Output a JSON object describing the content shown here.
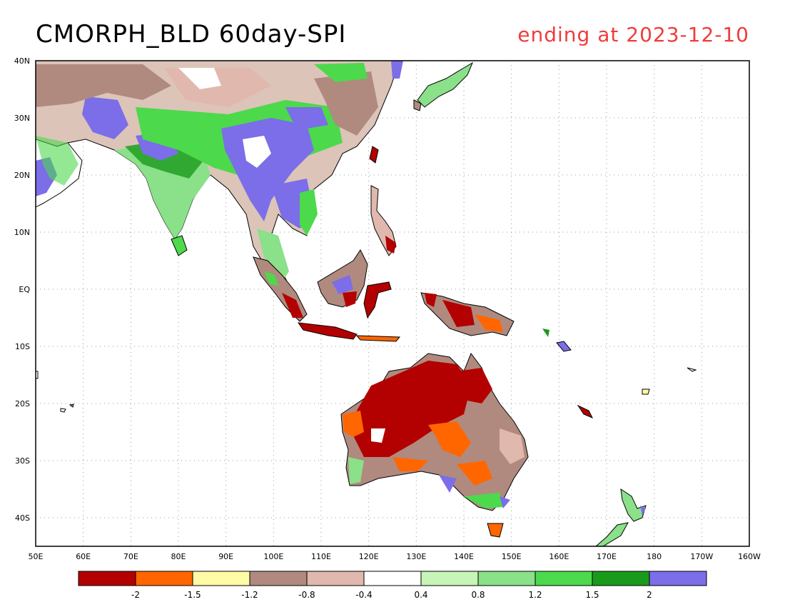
{
  "title": "CMORPH_BLD 60day-SPI",
  "subtitle": "ending at 2023-12-10",
  "colors": {
    "subtitle": "#f03c3c",
    "bins": [
      "#b30000",
      "#ff6600",
      "#fffaa5",
      "#b08a7e",
      "#e0b8ad",
      "#ffffff",
      "#c6f5b7",
      "#8be08a",
      "#4cd94c",
      "#1a9a1a",
      "#7b6ee8"
    ]
  },
  "map": {
    "lon_range": [
      50,
      200
    ],
    "lat_range": [
      -45,
      40
    ],
    "lat_ticks": [
      {
        "lat": 40,
        "label": "40N"
      },
      {
        "lat": 30,
        "label": "30N"
      },
      {
        "lat": 20,
        "label": "20N"
      },
      {
        "lat": 10,
        "label": "10N"
      },
      {
        "lat": 0,
        "label": "EQ"
      },
      {
        "lat": -10,
        "label": "10S"
      },
      {
        "lat": -20,
        "label": "20S"
      },
      {
        "lat": -30,
        "label": "30S"
      },
      {
        "lat": -40,
        "label": "40S"
      }
    ],
    "lon_ticks": [
      {
        "lon": 50,
        "label": "50E"
      },
      {
        "lon": 60,
        "label": "60E"
      },
      {
        "lon": 70,
        "label": "70E"
      },
      {
        "lon": 80,
        "label": "80E"
      },
      {
        "lon": 90,
        "label": "90E"
      },
      {
        "lon": 100,
        "label": "100E"
      },
      {
        "lon": 110,
        "label": "110E"
      },
      {
        "lon": 120,
        "label": "120E"
      },
      {
        "lon": 130,
        "label": "130E"
      },
      {
        "lon": 140,
        "label": "140E"
      },
      {
        "lon": 150,
        "label": "150E"
      },
      {
        "lon": 160,
        "label": "160E"
      },
      {
        "lon": 170,
        "label": "170E"
      },
      {
        "lon": 180,
        "label": "180"
      },
      {
        "lon": 190,
        "label": "170W"
      },
      {
        "lon": 200,
        "label": "160W"
      }
    ]
  },
  "legend": {
    "labels": [
      "-2",
      "-1.5",
      "-1.2",
      "-0.8",
      "-0.4",
      "0.4",
      "0.8",
      "1.2",
      "1.5",
      "2"
    ]
  }
}
